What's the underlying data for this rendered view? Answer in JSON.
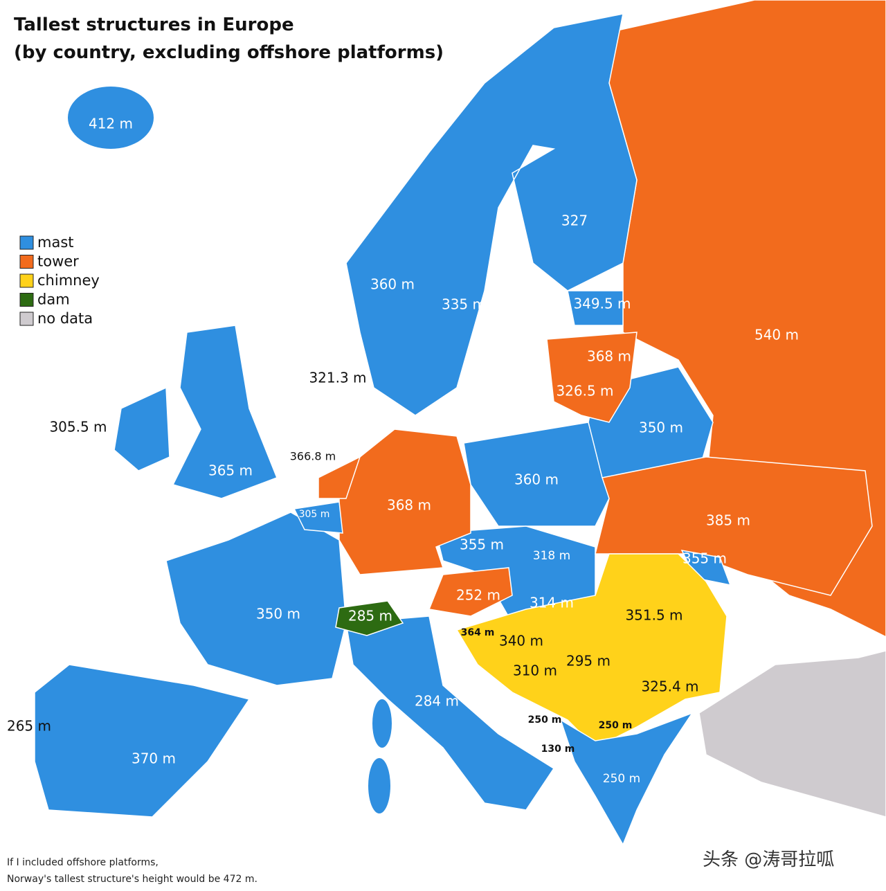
{
  "header": {
    "title": [
      "Tallest structures in Europe",
      "(by country, excluding offshore platforms)"
    ]
  },
  "legend": [
    {
      "label": "mast",
      "color": "#2f8fe0"
    },
    {
      "label": "tower",
      "color": "#f26b1d"
    },
    {
      "label": "chimney",
      "color": "#ffd21a"
    },
    {
      "label": "dam",
      "color": "#2d6b12"
    },
    {
      "label": "no data",
      "color": "#cfcbcf"
    }
  ],
  "labels": [
    "412 m",
    "327",
    "360 m",
    "335 m",
    "349.5 m",
    "540 m",
    "368 m",
    "321.3 m",
    "326.5 m",
    "305.5 m",
    "350 m",
    "366.8 m",
    "365 m",
    "360 m",
    "368 m",
    "305 m",
    "385 m",
    "355 m",
    "318 m",
    "355 m",
    "252 m",
    "314 m",
    "350 m",
    "285 m",
    "351.5 m",
    "364 m",
    "340 m",
    "295 m",
    "310 m",
    "325.4 m",
    "284 m",
    "265 m",
    "250 m",
    "250 m",
    "370 m",
    "130 m",
    "250 m"
  ],
  "note": [
    "If I included offshore platforms,",
    "Norway's tallest structure's height would be 472 m."
  ],
  "watermark": "头条 @涛哥拉呱"
}
